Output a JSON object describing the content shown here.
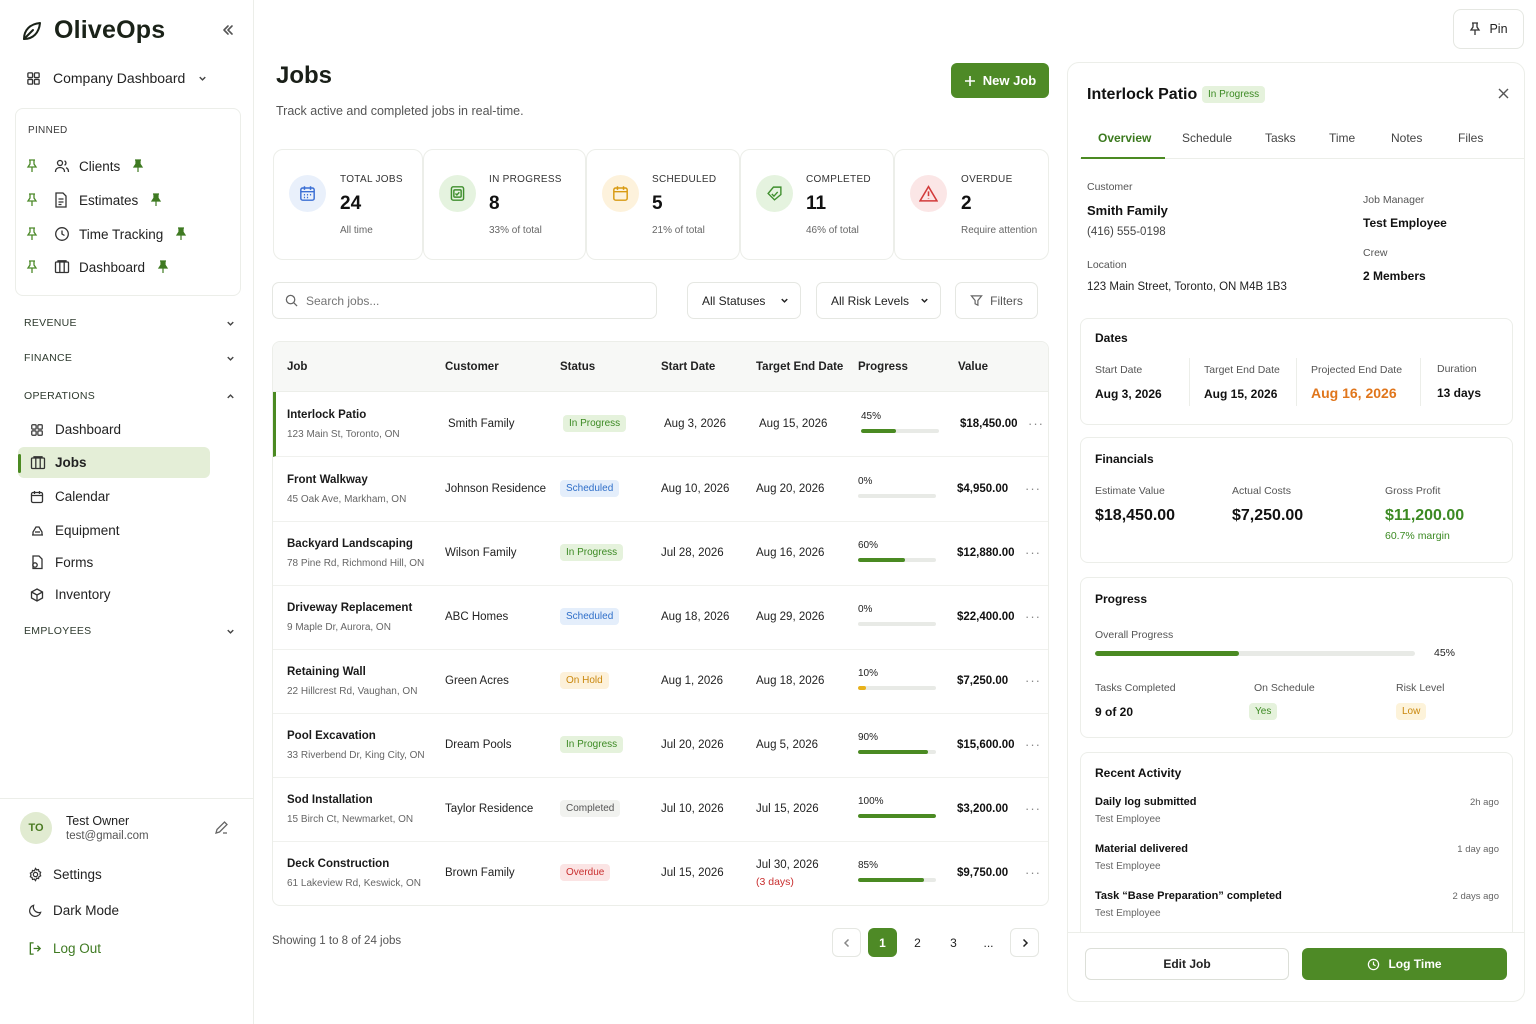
{
  "app": {
    "name": "OliveOps"
  },
  "sidebar": {
    "company_dashboard": "Company Dashboard",
    "pinned_label": "PINNED",
    "pinned": [
      {
        "label": "Clients",
        "icon": "users-icon"
      },
      {
        "label": "Estimates",
        "icon": "document-icon"
      },
      {
        "label": "Time Tracking",
        "icon": "clock-icon"
      },
      {
        "label": "Dashboard",
        "icon": "columns-icon"
      }
    ],
    "sections": {
      "revenue": "REVENUE",
      "finance": "FINANCE",
      "operations": "OPERATIONS",
      "employees": "EMPLOYEES"
    },
    "operations_items": [
      {
        "label": "Dashboard",
        "icon": "grid-icon"
      },
      {
        "label": "Jobs",
        "icon": "columns-icon",
        "active": true
      },
      {
        "label": "Calendar",
        "icon": "calendar-icon"
      },
      {
        "label": "Equipment",
        "icon": "equipment-icon"
      },
      {
        "label": "Forms",
        "icon": "forms-icon"
      },
      {
        "label": "Inventory",
        "icon": "box-icon"
      }
    ],
    "user": {
      "initials": "TO",
      "name": "Test Owner",
      "email": "test@gmail.com"
    },
    "settings": "Settings",
    "dark_mode": "Dark Mode",
    "log_out": "Log Out"
  },
  "page": {
    "title": "Jobs",
    "subtitle": "Track active and completed jobs in real-time.",
    "new_job": "New Job"
  },
  "stats": [
    {
      "label": "TOTAL JOBS",
      "value": "24",
      "note": "All time",
      "icon": "calendar-icon",
      "color": "#3b6fd4",
      "bg": "#e9f0fb"
    },
    {
      "label": "IN PROGRESS",
      "value": "8",
      "note": "33% of total",
      "icon": "calendar-check-icon",
      "color": "#3f8f2e",
      "bg": "#e5f3df"
    },
    {
      "label": "SCHEDULED",
      "value": "5",
      "note": "21% of total",
      "icon": "calendar-icon",
      "color": "#d89a12",
      "bg": "#fdf2dc"
    },
    {
      "label": "COMPLETED",
      "value": "11",
      "note": "46% of total",
      "icon": "tag-check-icon",
      "color": "#3f8f2e",
      "bg": "#e5f3df"
    },
    {
      "label": "OVERDUE",
      "value": "2",
      "note": "Require attention",
      "icon": "warning-icon",
      "color": "#d23b3b",
      "bg": "#fbe6e6"
    }
  ],
  "filters": {
    "search_placeholder": "Search jobs...",
    "status": "All Statuses",
    "risk": "All Risk Levels",
    "filters": "Filters"
  },
  "table": {
    "headers": [
      "Job",
      "Customer",
      "Status",
      "Start Date",
      "Target End Date",
      "Progress",
      "Value"
    ],
    "rows": [
      {
        "job": "Interlock Patio",
        "address": "123 Main St, Toronto, ON",
        "customer": "Smith Family",
        "status": "In Progress",
        "start": "Aug 3, 2026",
        "end": "Aug 15, 2026",
        "end_note": "",
        "progress": 45,
        "progress_label": "45%",
        "value": "$18,450.00"
      },
      {
        "job": "Front Walkway",
        "address": "45 Oak Ave, Markham, ON",
        "customer": "Johnson Residence",
        "status": "Scheduled",
        "start": "Aug 10, 2026",
        "end": "Aug 20, 2026",
        "end_note": "",
        "progress": 0,
        "progress_label": "0%",
        "value": "$4,950.00"
      },
      {
        "job": "Backyard Landscaping",
        "address": "78 Pine Rd, Richmond Hill, ON",
        "customer": "Wilson Family",
        "status": "In Progress",
        "start": "Jul 28, 2026",
        "end": "Aug 16, 2026",
        "end_note": "",
        "progress": 60,
        "progress_label": "60%",
        "value": "$12,880.00"
      },
      {
        "job": "Driveway Replacement",
        "address": "9 Maple Dr, Aurora, ON",
        "customer": "ABC Homes",
        "status": "Scheduled",
        "start": "Aug 18, 2026",
        "end": "Aug 29, 2026",
        "end_note": "",
        "progress": 0,
        "progress_label": "0%",
        "value": "$22,400.00"
      },
      {
        "job": "Retaining Wall",
        "address": "22 Hillcrest Rd, Vaughan, ON",
        "customer": "Green Acres",
        "status": "On Hold",
        "start": "Aug 1, 2026",
        "end": "Aug 18, 2026",
        "end_note": "",
        "progress": 10,
        "progress_label": "10%",
        "value": "$7,250.00"
      },
      {
        "job": "Pool Excavation",
        "address": "33 Riverbend Dr, King City, ON",
        "customer": "Dream Pools",
        "status": "In Progress",
        "start": "Jul 20, 2026",
        "end": "Aug 5, 2026",
        "end_note": "",
        "progress": 90,
        "progress_label": "90%",
        "value": "$15,600.00"
      },
      {
        "job": "Sod Installation",
        "address": "15 Birch Ct, Newmarket, ON",
        "customer": "Taylor Residence",
        "status": "Completed",
        "start": "Jul 10, 2026",
        "end": "Jul 15, 2026",
        "end_note": "",
        "progress": 100,
        "progress_label": "100%",
        "value": "$3,200.00"
      },
      {
        "job": "Deck Construction",
        "address": "61 Lakeview Rd, Keswick, ON",
        "customer": "Brown Family",
        "status": "Overdue",
        "start": "Jul 15, 2026",
        "end": "Jul 30, 2026",
        "end_note": "(3 days)",
        "progress": 85,
        "progress_label": "85%",
        "value": "$9,750.00"
      }
    ],
    "more": "···",
    "footer": "Showing 1 to 8 of 24 jobs",
    "pages": [
      "1",
      "2",
      "3",
      "..."
    ]
  },
  "status_colors": {
    "In Progress": {
      "fg": "#3c8a23",
      "bg": "#e5f2dc"
    },
    "Scheduled": {
      "fg": "#2f6fc9",
      "bg": "#e4eefb"
    },
    "On Hold": {
      "fg": "#c9870d",
      "bg": "#fdf1da"
    },
    "Completed": {
      "fg": "#555555",
      "bg": "#f1f2ef"
    },
    "Overdue": {
      "fg": "#c92f2f",
      "bg": "#fbe4e4"
    }
  },
  "panel": {
    "pin": "Pin",
    "title": "Interlock Patio",
    "status": "In Progress",
    "tabs": [
      "Overview",
      "Schedule",
      "Tasks",
      "Time",
      "Notes",
      "Files"
    ],
    "customer_label": "Customer",
    "customer": "Smith Family",
    "phone": "(416) 555-0198",
    "location_label": "Location",
    "location": "123 Main Street, Toronto, ON M4B 1B3",
    "manager_label": "Job Manager",
    "manager": "Test Employee",
    "crew_label": "Crew",
    "crew": "2 Members",
    "dates": {
      "title": "Dates",
      "start_label": "Start Date",
      "start": "Aug 3, 2026",
      "target_label": "Target End Date",
      "target": "Aug 15, 2026",
      "projected_label": "Projected End Date",
      "projected": "Aug 16, 2026",
      "duration_label": "Duration",
      "duration": "13 days"
    },
    "financials": {
      "title": "Financials",
      "estimate_label": "Estimate Value",
      "estimate": "$18,450.00",
      "actual_label": "Actual Costs",
      "actual": "$7,250.00",
      "profit_label": "Gross Profit",
      "profit": "$11,200.00",
      "margin": "60.7% margin"
    },
    "progress": {
      "title": "Progress",
      "overall_label": "Overall Progress",
      "overall": 45,
      "overall_text": "45%",
      "tasks_label": "Tasks Completed",
      "tasks": "9 of 20",
      "schedule_label": "On Schedule",
      "schedule": "Yes",
      "risk_label": "Risk Level",
      "risk": "Low"
    },
    "activity": {
      "title": "Recent Activity",
      "items": [
        {
          "title": "Daily log submitted",
          "by": "Test Employee",
          "time": "2h ago"
        },
        {
          "title": "Material delivered",
          "by": "Test Employee",
          "time": "1 day ago"
        },
        {
          "title": "Task “Base Preparation” completed",
          "by": "Test Employee",
          "time": "2 days ago"
        }
      ]
    },
    "edit_job": "Edit Job",
    "log_time": "Log Time"
  }
}
